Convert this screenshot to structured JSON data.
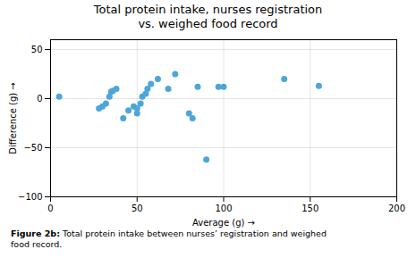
{
  "chart_data": {
    "type": "scatter",
    "title": "Total protein intake, nurses registration\nvs. weighed food record",
    "xlabel": "Average (g)",
    "ylabel": "Difference (g)",
    "caption": "Figure 2b: Total protein intake between nurses’ registration and weighed\nfood record.",
    "x": [
      5,
      28,
      30,
      32,
      34,
      35,
      36,
      38,
      42,
      45,
      48,
      50,
      50,
      52,
      53,
      55,
      56,
      58,
      62,
      68,
      72,
      80,
      82,
      85,
      90,
      97,
      100,
      135,
      155
    ],
    "values": [
      2,
      -10,
      -8,
      -5,
      2,
      7,
      8,
      10,
      -20,
      -12,
      -8,
      -15,
      -10,
      -5,
      2,
      5,
      10,
      15,
      20,
      10,
      25,
      -15,
      -20,
      12,
      -62,
      12,
      12,
      20,
      13
    ],
    "color": "#4da6d8",
    "xlim": [
      0,
      200
    ],
    "ylim": [
      -100,
      60
    ],
    "xticks": [
      0,
      50,
      100,
      150,
      200
    ],
    "yticks": [
      -100,
      -50,
      0,
      50
    ],
    "grid": true
  }
}
